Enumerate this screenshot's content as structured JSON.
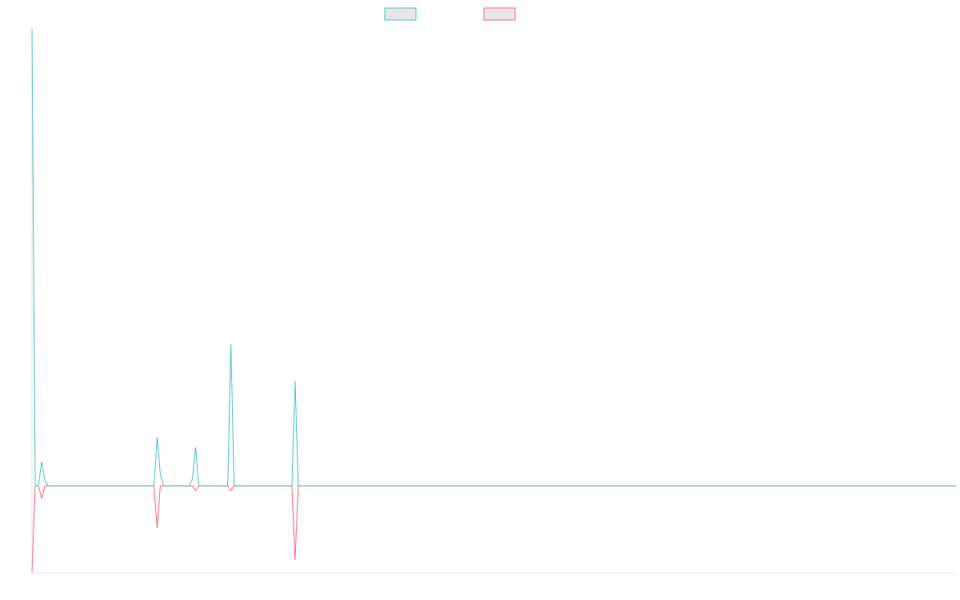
{
  "chart_data": {
    "type": "line",
    "title": "",
    "xlabel": "",
    "ylabel": "",
    "grid": false,
    "legend_position": "top-center",
    "xlim": [
      0,
      288
    ],
    "ylim": [
      -0.19,
      1
    ],
    "colors": {
      "series_0": "#4bc0c0",
      "series_1": "#ff6384",
      "legend_fill": "#e6e6e6",
      "axis": "#e0e0e0"
    },
    "x": [
      0,
      1,
      2,
      3,
      4,
      5,
      6,
      7,
      37,
      38,
      39,
      40,
      41,
      42,
      49,
      50,
      51,
      52,
      53,
      60,
      61,
      62,
      63,
      64,
      80,
      81,
      82,
      83,
      84,
      288
    ],
    "series": [
      {
        "name": "",
        "values": [
          1.0,
          0,
          0,
          0.053,
          0.013,
          0,
          0,
          0,
          0,
          0,
          0.106,
          0.026,
          0,
          0,
          0,
          0.015,
          0.085,
          0,
          0,
          0,
          0,
          0.31,
          0,
          0,
          0,
          0,
          0.23,
          0,
          0,
          0
        ]
      },
      {
        "name": "",
        "values": [
          -0.19,
          0,
          0,
          -0.028,
          0,
          0,
          0,
          0,
          0,
          0,
          -0.092,
          0,
          0,
          0,
          0,
          0,
          -0.01,
          0,
          0,
          0,
          0,
          -0.01,
          0,
          0,
          0,
          0,
          -0.162,
          0,
          0,
          0
        ]
      }
    ]
  }
}
